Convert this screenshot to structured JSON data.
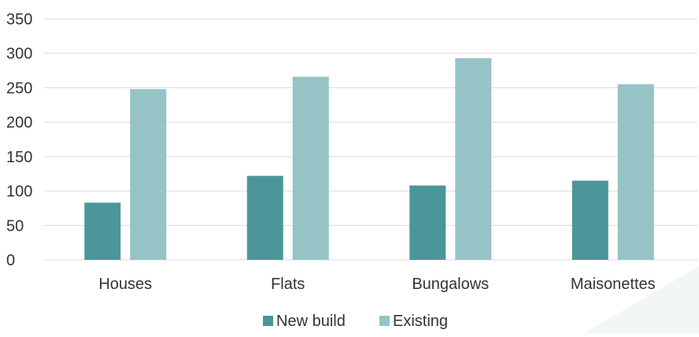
{
  "chart_data": {
    "type": "bar",
    "categories": [
      "Houses",
      "Flats",
      "Bungalows",
      "Maisonettes"
    ],
    "series": [
      {
        "name": "New build",
        "values": [
          83,
          122,
          108,
          115
        ],
        "color": "#4a9699"
      },
      {
        "name": "Existing",
        "values": [
          248,
          266,
          293,
          255
        ],
        "color": "#95c3c6"
      }
    ],
    "yticks": [
      "0",
      "50",
      "100",
      "150",
      "200",
      "250",
      "300",
      "350"
    ],
    "ylim": [
      0,
      350
    ],
    "title": "",
    "xlabel": "",
    "ylabel": "",
    "grid": true,
    "legend_position": "bottom-center"
  },
  "colors": {
    "gridline": "#d9d9d9",
    "axis_text": "#333333",
    "corner_decoration": "#f2f6f6"
  }
}
